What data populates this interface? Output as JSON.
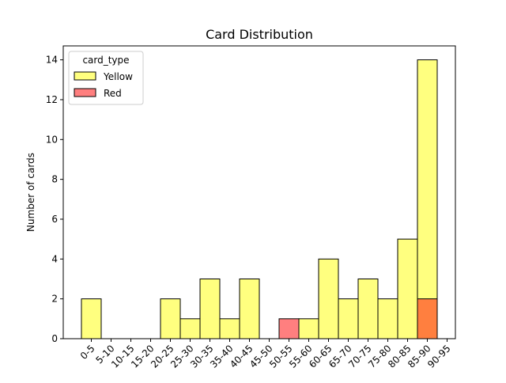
{
  "chart_data": {
    "type": "bar",
    "title": "Card Distribution",
    "xlabel": "",
    "ylabel": "Number of cards",
    "categories": [
      "0-5",
      "5-10",
      "10-15",
      "15-20",
      "20-25",
      "25-30",
      "30-35",
      "35-40",
      "40-45",
      "45-50",
      "50-55",
      "55-60",
      "60-65",
      "65-70",
      "70-75",
      "75-80",
      "80-85",
      "85-90",
      "90-95"
    ],
    "series": [
      {
        "name": "Yellow",
        "color": "#ffff00",
        "values": [
          2,
          0,
          0,
          0,
          2,
          1,
          3,
          1,
          3,
          0,
          0,
          1,
          4,
          2,
          3,
          2,
          5,
          14,
          0
        ]
      },
      {
        "name": "Red",
        "color": "#ff0000",
        "values": [
          0,
          0,
          0,
          0,
          0,
          0,
          0,
          0,
          0,
          0,
          1,
          0,
          0,
          0,
          0,
          0,
          0,
          2,
          0
        ]
      }
    ],
    "ylim": [
      0,
      14.7
    ],
    "yticks": [
      0,
      2,
      4,
      6,
      8,
      10,
      12,
      14
    ],
    "overlay": true,
    "alpha": 0.5,
    "legend": {
      "title": "card_type",
      "placement": "top-left"
    },
    "grid": false
  }
}
